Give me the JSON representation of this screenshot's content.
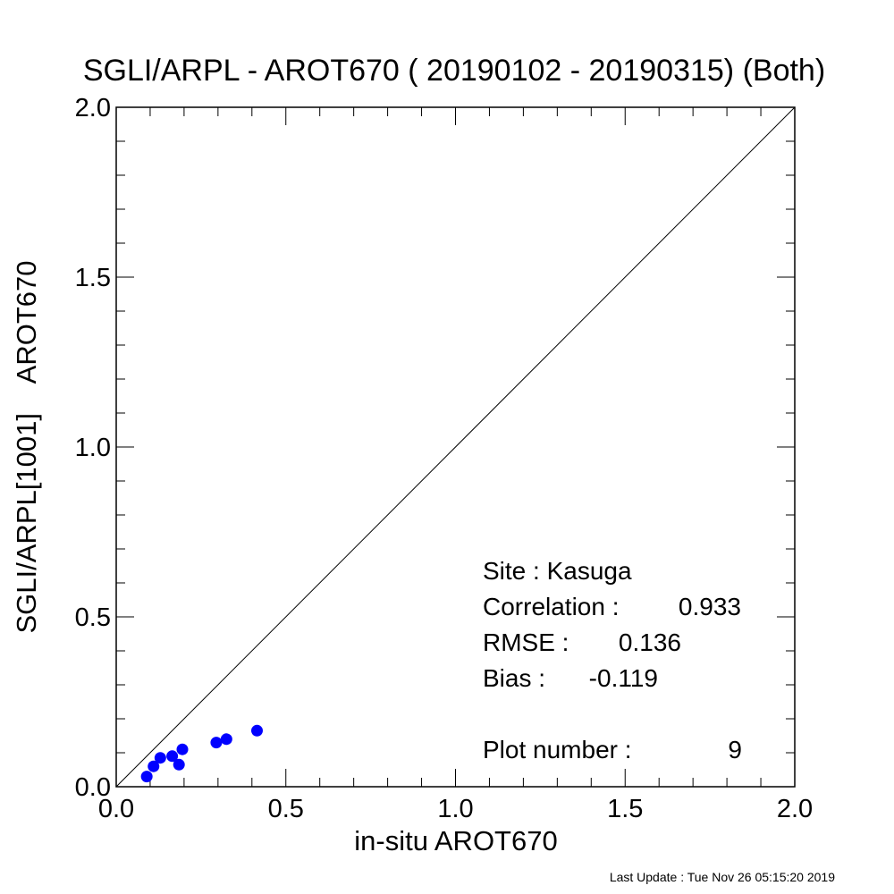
{
  "chart_data": {
    "type": "scatter",
    "title": "SGLI/ARPL - AROT670 ( 20190102 - 20190315) (Both)",
    "xlabel": "in-situ AROT670",
    "ylabel": "SGLI/ARPL[1001]    AROT670",
    "xlim": [
      0.0,
      2.0
    ],
    "ylim": [
      0.0,
      2.0
    ],
    "x_ticks": [
      "0.0",
      "0.5",
      "1.0",
      "1.5",
      "2.0"
    ],
    "y_ticks": [
      "0.0",
      "0.5",
      "1.0",
      "1.5",
      "2.0"
    ],
    "grid": false,
    "one_to_one_line": true,
    "point_color": "#0000ff",
    "series": [
      {
        "points": [
          {
            "x": 0.09,
            "y": 0.03
          },
          {
            "x": 0.11,
            "y": 0.06
          },
          {
            "x": 0.13,
            "y": 0.085
          },
          {
            "x": 0.165,
            "y": 0.09
          },
          {
            "x": 0.185,
            "y": 0.065
          },
          {
            "x": 0.195,
            "y": 0.11
          },
          {
            "x": 0.295,
            "y": 0.13
          },
          {
            "x": 0.325,
            "y": 0.14
          },
          {
            "x": 0.415,
            "y": 0.165
          }
        ]
      }
    ],
    "stats": {
      "site": "Site : Kasuga",
      "correlation_label": "Correlation :",
      "correlation_value": "0.933",
      "rmse_label": "RMSE :",
      "rmse_value": "0.136",
      "bias_label": "Bias :",
      "bias_value": "-0.119",
      "plot_number_label": "Plot number :",
      "plot_number_value": "9"
    }
  },
  "footer": {
    "last_update": "Last Update : Tue Nov 26 05:15:20 2019"
  }
}
